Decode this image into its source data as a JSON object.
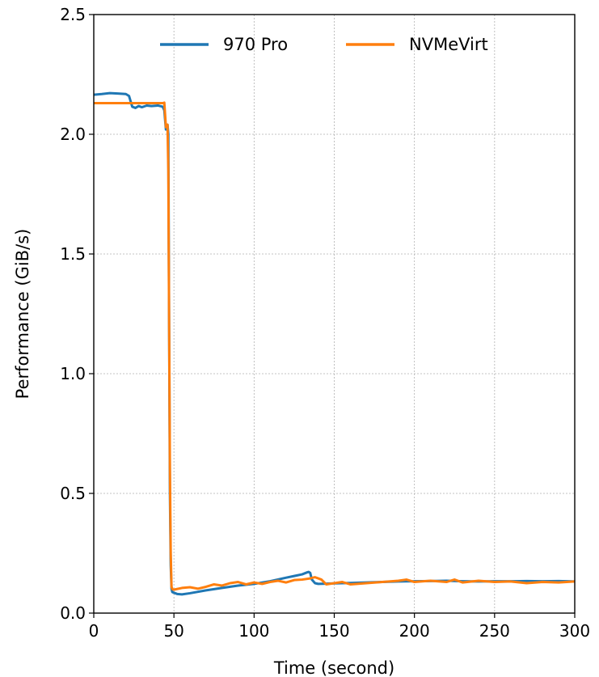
{
  "chart_data": {
    "type": "line",
    "title": "",
    "xlabel": "Time (second)",
    "ylabel": "Performance (GiB/s)",
    "xlim": [
      0,
      300
    ],
    "ylim": [
      0,
      2.5
    ],
    "xticks": [
      0,
      50,
      100,
      150,
      200,
      250,
      300
    ],
    "yticks": [
      0.0,
      0.5,
      1.0,
      1.5,
      2.0,
      2.5
    ],
    "xtick_labels": [
      "0",
      "50",
      "100",
      "150",
      "200",
      "250",
      "300"
    ],
    "ytick_labels": [
      "0.0",
      "0.5",
      "1.0",
      "1.5",
      "2.0",
      "2.5"
    ],
    "grid": true,
    "legend_position": "top-center",
    "series": [
      {
        "name": "970 Pro",
        "color": "#1f77b4",
        "x": [
          0,
          5,
          10,
          15,
          20,
          22,
          24,
          26,
          28,
          30,
          33,
          36,
          40,
          43,
          44,
          45,
          46,
          46.5,
          47,
          47.5,
          48,
          48.5,
          49,
          50,
          52,
          55,
          60,
          70,
          80,
          90,
          100,
          110,
          120,
          125,
          130,
          133,
          134,
          135,
          136,
          138,
          140,
          145,
          150,
          160,
          170,
          180,
          190,
          200,
          210,
          220,
          230,
          240,
          250,
          260,
          270,
          280,
          290,
          300
        ],
        "y": [
          2.165,
          2.168,
          2.172,
          2.17,
          2.168,
          2.16,
          2.115,
          2.11,
          2.118,
          2.113,
          2.12,
          2.118,
          2.12,
          2.115,
          2.1,
          2.02,
          2.04,
          2.0,
          1.2,
          0.5,
          0.2,
          0.1,
          0.088,
          0.085,
          0.08,
          0.078,
          0.083,
          0.095,
          0.105,
          0.115,
          0.122,
          0.133,
          0.148,
          0.155,
          0.162,
          0.17,
          0.172,
          0.168,
          0.14,
          0.125,
          0.122,
          0.123,
          0.124,
          0.126,
          0.128,
          0.13,
          0.132,
          0.133,
          0.134,
          0.135,
          0.133,
          0.132,
          0.133,
          0.133,
          0.134,
          0.133,
          0.134,
          0.132
        ]
      },
      {
        "name": "NVMeVirt",
        "color": "#ff7f0e",
        "x": [
          0,
          10,
          20,
          30,
          40,
          43,
          44,
          45,
          46,
          46.5,
          47,
          47.5,
          48,
          48.5,
          49,
          50,
          55,
          60,
          65,
          70,
          75,
          80,
          85,
          90,
          95,
          100,
          105,
          110,
          115,
          120,
          125,
          130,
          135,
          138,
          140,
          142,
          145,
          150,
          155,
          160,
          170,
          180,
          190,
          195,
          200,
          210,
          220,
          225,
          230,
          240,
          250,
          260,
          270,
          280,
          290,
          295,
          300
        ],
        "y": [
          2.13,
          2.13,
          2.13,
          2.13,
          2.13,
          2.13,
          2.132,
          2.03,
          2.04,
          1.85,
          1.2,
          0.6,
          0.25,
          0.11,
          0.1,
          0.098,
          0.105,
          0.108,
          0.102,
          0.11,
          0.12,
          0.115,
          0.125,
          0.13,
          0.12,
          0.128,
          0.122,
          0.13,
          0.135,
          0.128,
          0.138,
          0.14,
          0.145,
          0.15,
          0.145,
          0.14,
          0.12,
          0.125,
          0.13,
          0.12,
          0.125,
          0.13,
          0.135,
          0.14,
          0.13,
          0.135,
          0.13,
          0.14,
          0.128,
          0.135,
          0.13,
          0.132,
          0.125,
          0.13,
          0.128,
          0.13,
          0.132
        ]
      }
    ]
  }
}
